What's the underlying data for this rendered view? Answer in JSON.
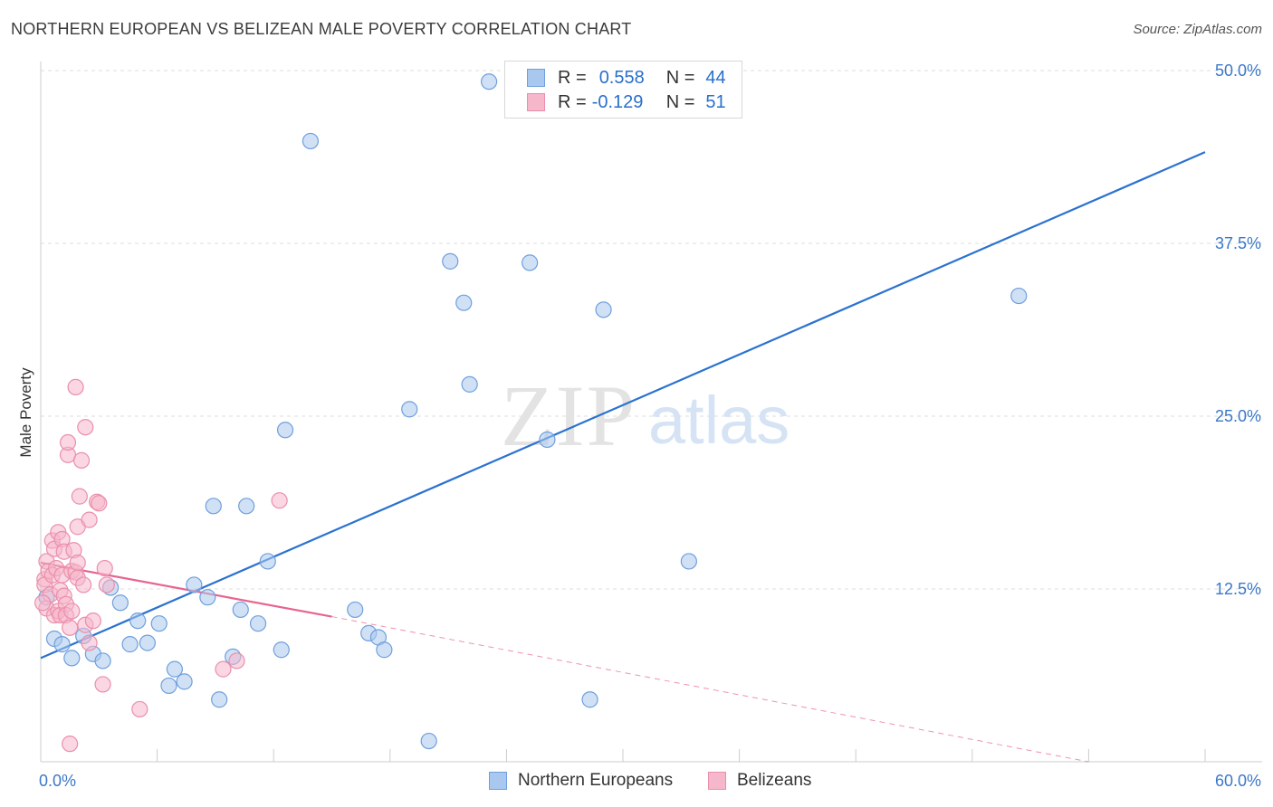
{
  "title": "NORTHERN EUROPEAN VS BELIZEAN MALE POVERTY CORRELATION CHART",
  "source": "Source: ZipAtlas.com",
  "watermark": {
    "zip": "ZIP",
    "atlas": "atlas"
  },
  "legend_top": [
    {
      "r_label": "R =",
      "r_value": "0.558",
      "n_label": "N =",
      "n_value": "44"
    },
    {
      "r_label": "R =",
      "r_value": "-0.129",
      "n_label": "N =",
      "n_value": "51"
    }
  ],
  "legend_bottom": [
    "Northern Europeans",
    "Belizeans"
  ],
  "colors": {
    "blue_fill": "#a9c8ef",
    "blue_stroke": "#6f9fdc",
    "blue_line": "#2a72d0",
    "pink_fill": "#f6b7cb",
    "pink_stroke": "#ea8fab",
    "pink_line": "#e8648e",
    "axis_text": "#3a78c9",
    "grid": "#dddddd"
  },
  "chart_data": {
    "type": "scatter",
    "title": "NORTHERN EUROPEAN VS BELIZEAN MALE POVERTY CORRELATION CHART",
    "xlabel": "",
    "ylabel": "Male Poverty",
    "xlim": [
      0,
      60
    ],
    "ylim": [
      0,
      50
    ],
    "x_tick_labels": [
      "0.0%",
      "60.0%"
    ],
    "y_ticks": [
      12.5,
      25.0,
      37.5,
      50.0
    ],
    "y_tick_labels": [
      "12.5%",
      "25.0%",
      "37.5%",
      "50.0%"
    ],
    "grid": true,
    "series": [
      {
        "name": "Northern Europeans",
        "r": 0.558,
        "n": 44,
        "points": [
          [
            0.3,
            11.9
          ],
          [
            0.7,
            8.9
          ],
          [
            1.1,
            8.5
          ],
          [
            1.6,
            7.5
          ],
          [
            2.2,
            9.1
          ],
          [
            2.7,
            7.8
          ],
          [
            3.2,
            7.3
          ],
          [
            3.6,
            12.6
          ],
          [
            4.1,
            11.5
          ],
          [
            4.6,
            8.5
          ],
          [
            5.0,
            10.2
          ],
          [
            5.5,
            8.6
          ],
          [
            6.1,
            10.0
          ],
          [
            6.6,
            5.5
          ],
          [
            6.9,
            6.7
          ],
          [
            7.4,
            5.8
          ],
          [
            7.9,
            12.8
          ],
          [
            8.6,
            11.9
          ],
          [
            8.9,
            18.5
          ],
          [
            9.2,
            4.5
          ],
          [
            9.9,
            7.6
          ],
          [
            10.3,
            11.0
          ],
          [
            10.6,
            18.5
          ],
          [
            11.2,
            10.0
          ],
          [
            11.7,
            14.5
          ],
          [
            12.4,
            8.1
          ],
          [
            12.6,
            24.0
          ],
          [
            13.9,
            44.9
          ],
          [
            16.2,
            11.0
          ],
          [
            16.9,
            9.3
          ],
          [
            17.4,
            9.0
          ],
          [
            17.7,
            8.1
          ],
          [
            19.0,
            25.5
          ],
          [
            20.0,
            1.5
          ],
          [
            21.1,
            36.2
          ],
          [
            21.8,
            33.2
          ],
          [
            22.1,
            27.3
          ],
          [
            23.1,
            49.2
          ],
          [
            25.2,
            36.1
          ],
          [
            26.1,
            23.3
          ],
          [
            28.3,
            4.5
          ],
          [
            29.0,
            32.7
          ],
          [
            33.4,
            14.5
          ],
          [
            50.4,
            33.7
          ]
        ],
        "trend": {
          "x1": 0,
          "y1": 7.5,
          "x2": 60,
          "y2": 44.1
        }
      },
      {
        "name": "Belizeans",
        "r": -0.129,
        "n": 51,
        "points": [
          [
            0.2,
            13.2
          ],
          [
            0.2,
            12.8
          ],
          [
            0.3,
            14.5
          ],
          [
            0.3,
            11.1
          ],
          [
            0.4,
            13.8
          ],
          [
            0.5,
            12.1
          ],
          [
            0.6,
            16.0
          ],
          [
            0.6,
            13.5
          ],
          [
            0.7,
            15.4
          ],
          [
            0.7,
            10.6
          ],
          [
            0.8,
            14.0
          ],
          [
            0.9,
            16.6
          ],
          [
            0.9,
            10.9
          ],
          [
            1.0,
            12.4
          ],
          [
            1.0,
            10.6
          ],
          [
            1.1,
            16.1
          ],
          [
            1.1,
            13.5
          ],
          [
            1.2,
            12.0
          ],
          [
            1.2,
            15.2
          ],
          [
            1.3,
            11.4
          ],
          [
            1.3,
            10.6
          ],
          [
            1.4,
            22.2
          ],
          [
            1.4,
            23.1
          ],
          [
            1.5,
            9.7
          ],
          [
            1.5,
            1.3
          ],
          [
            1.6,
            13.8
          ],
          [
            1.6,
            10.9
          ],
          [
            1.7,
            15.3
          ],
          [
            1.8,
            27.1
          ],
          [
            1.8,
            13.7
          ],
          [
            1.9,
            14.4
          ],
          [
            1.9,
            17.0
          ],
          [
            1.9,
            13.3
          ],
          [
            2.0,
            19.2
          ],
          [
            2.1,
            21.8
          ],
          [
            2.2,
            12.8
          ],
          [
            2.3,
            9.9
          ],
          [
            2.3,
            24.2
          ],
          [
            2.5,
            17.5
          ],
          [
            2.5,
            8.6
          ],
          [
            2.7,
            10.2
          ],
          [
            2.9,
            18.8
          ],
          [
            3.0,
            18.7
          ],
          [
            3.2,
            5.6
          ],
          [
            3.3,
            14.0
          ],
          [
            3.4,
            12.8
          ],
          [
            5.1,
            3.8
          ],
          [
            9.4,
            6.7
          ],
          [
            10.1,
            7.3
          ],
          [
            12.3,
            18.9
          ],
          [
            0.1,
            11.5
          ]
        ],
        "trend": {
          "x1": 0,
          "y1": 14.4,
          "x2": 15.0,
          "y2": 10.5
        },
        "trend_extension": {
          "x1": 15.0,
          "y1": 10.5,
          "x2": 54,
          "y2": 0
        }
      }
    ]
  }
}
